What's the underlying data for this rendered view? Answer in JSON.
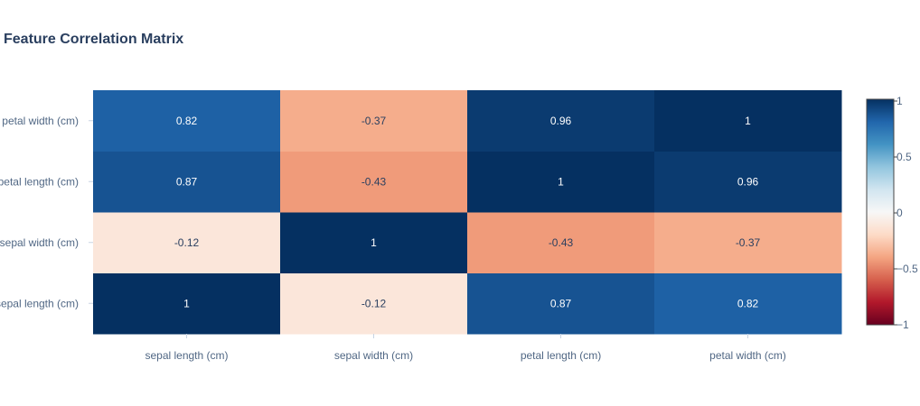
{
  "chart_data": {
    "type": "heatmap",
    "title": "Feature Correlation Matrix",
    "x_categories": [
      "sepal length (cm)",
      "sepal width (cm)",
      "petal length (cm)",
      "petal width (cm)"
    ],
    "y_categories": [
      "sepal length (cm)",
      "sepal width (cm)",
      "petal length (cm)",
      "petal width (cm)"
    ],
    "z": [
      [
        1,
        -0.12,
        0.87,
        0.82
      ],
      [
        -0.12,
        1,
        -0.43,
        -0.37
      ],
      [
        0.87,
        -0.43,
        1,
        0.96
      ],
      [
        0.82,
        -0.37,
        0.96,
        1
      ]
    ],
    "text": [
      [
        "1",
        "-0.12",
        "0.87",
        "0.82"
      ],
      [
        "-0.12",
        "1",
        "-0.43",
        "-0.37"
      ],
      [
        "0.87",
        "-0.43",
        "1",
        "0.96"
      ],
      [
        "0.82",
        "-0.37",
        "0.96",
        "1"
      ]
    ],
    "zmin": -1,
    "zmax": 1,
    "colorscale": "RdBu",
    "colorbar_ticks": [
      1,
      0.5,
      0,
      -0.5,
      -1
    ],
    "colorbar_tick_labels": [
      "1",
      "0.5",
      "0",
      "−0.5",
      "−1"
    ],
    "colorbar_placement": "right",
    "grid": false
  }
}
